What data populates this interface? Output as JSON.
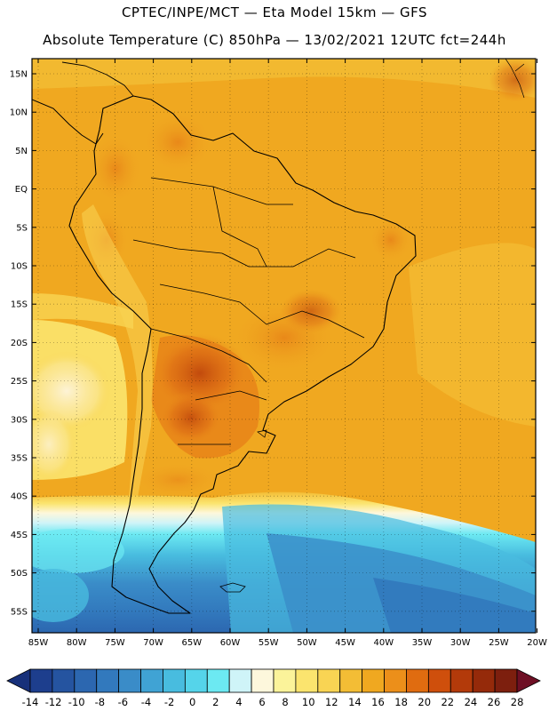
{
  "header": {
    "title_line1": "CPTEC/INPE/MCT —  Eta Model 15km — GFS",
    "title_line2": "Absolute Temperature (C) 850hPa — 13/02/2021 12UTC fct=244h"
  },
  "map": {
    "lat_labels": [
      "15N",
      "10N",
      "5N",
      "EQ",
      "5S",
      "10S",
      "15S",
      "20S",
      "25S",
      "30S",
      "35S",
      "40S",
      "45S",
      "50S",
      "55S"
    ],
    "lon_labels": [
      "85W",
      "80W",
      "75W",
      "70W",
      "65W",
      "60W",
      "55W",
      "50W",
      "45W",
      "40W",
      "35W",
      "30W",
      "25W",
      "20W"
    ]
  },
  "colorbar": {
    "labels": [
      "-14",
      "-12",
      "-10",
      "-8",
      "-6",
      "-4",
      "-2",
      "0",
      "2",
      "4",
      "6",
      "8",
      "10",
      "12",
      "14",
      "16",
      "18",
      "20",
      "22",
      "24",
      "26",
      "28"
    ],
    "colors": [
      "#1d3e8d",
      "#2554a0",
      "#2c67b0",
      "#3279bd",
      "#3a8cc8",
      "#40a3d4",
      "#48bcdf",
      "#55d4ea",
      "#6ce9f2",
      "#cff4f8",
      "#fdf7dc",
      "#fbf39a",
      "#fbe46e",
      "#f9d453",
      "#f3bd35",
      "#f0a820",
      "#ec8f1a",
      "#e06c10",
      "#cf4f0c",
      "#b33a0a",
      "#952a0a",
      "#7d1f0e"
    ],
    "under_color": "#17307a",
    "over_color": "#6e0f24"
  }
}
